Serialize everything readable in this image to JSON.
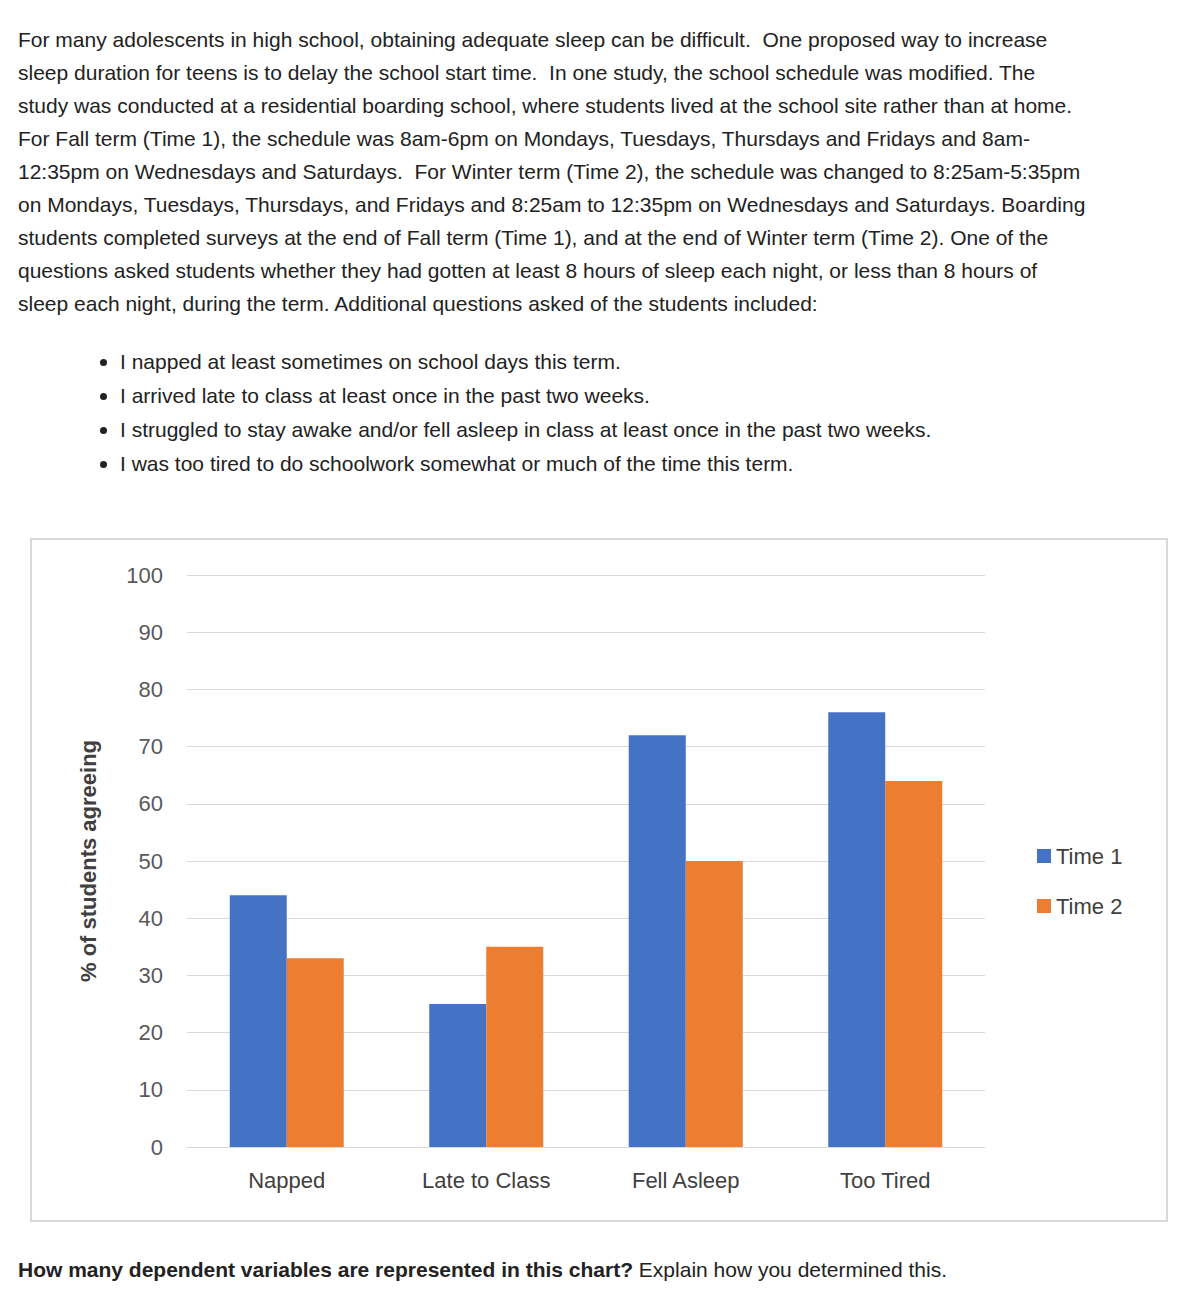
{
  "paragraph": [
    "For many adolescents in high school, obtaining adequate sleep can be difficult.  One proposed way to increase",
    "sleep duration for teens is to delay the school start time.  In one study, the school schedule was modified. The",
    "study was conducted at a residential boarding school, where students lived at the school site rather than at home.",
    "For Fall term (Time 1), the schedule was 8am-6pm on Mondays, Tuesdays, Thursdays and Fridays and 8am-",
    "12:35pm on Wednesdays and Saturdays.  For Winter term (Time 2), the schedule was changed to 8:25am-5:35pm",
    "on Mondays, Tuesdays, Thursdays, and Fridays and 8:25am to 12:35pm on Wednesdays and Saturdays. Boarding",
    "students completed surveys at the end of Fall term (Time 1), and at the end of Winter term (Time 2). One of the",
    "questions asked students whether they had gotten at least 8 hours of sleep each night, or less than 8 hours of",
    "sleep each night, during the term. Additional questions asked of the students included:"
  ],
  "bullets": [
    "I napped at least sometimes on school days this term.",
    "I arrived late to class at least once in the past two weeks.",
    "I struggled to stay awake and/or fell asleep in class at least once in the past two weeks.",
    "I was too tired to do schoolwork somewhat or much of the time this term."
  ],
  "chart_data": {
    "type": "bar",
    "y_label": "% of students agreeing",
    "categories": [
      "Napped",
      "Late to Class",
      "Fell Asleep",
      "Too Tired"
    ],
    "series": [
      {
        "name": "Time 1",
        "color": "#4472c4",
        "values": [
          44,
          25,
          72,
          76
        ]
      },
      {
        "name": "Time 2",
        "color": "#ed7d31",
        "values": [
          33,
          35,
          50,
          64
        ]
      }
    ],
    "ylim": [
      0,
      100
    ],
    "yticks": [
      0,
      10,
      20,
      30,
      40,
      50,
      60,
      70,
      80,
      90,
      100
    ],
    "grid": true,
    "legend": "right"
  },
  "question": {
    "bold": "How many dependent variables are represented in this chart?",
    "text": " Explain how you determined this."
  }
}
